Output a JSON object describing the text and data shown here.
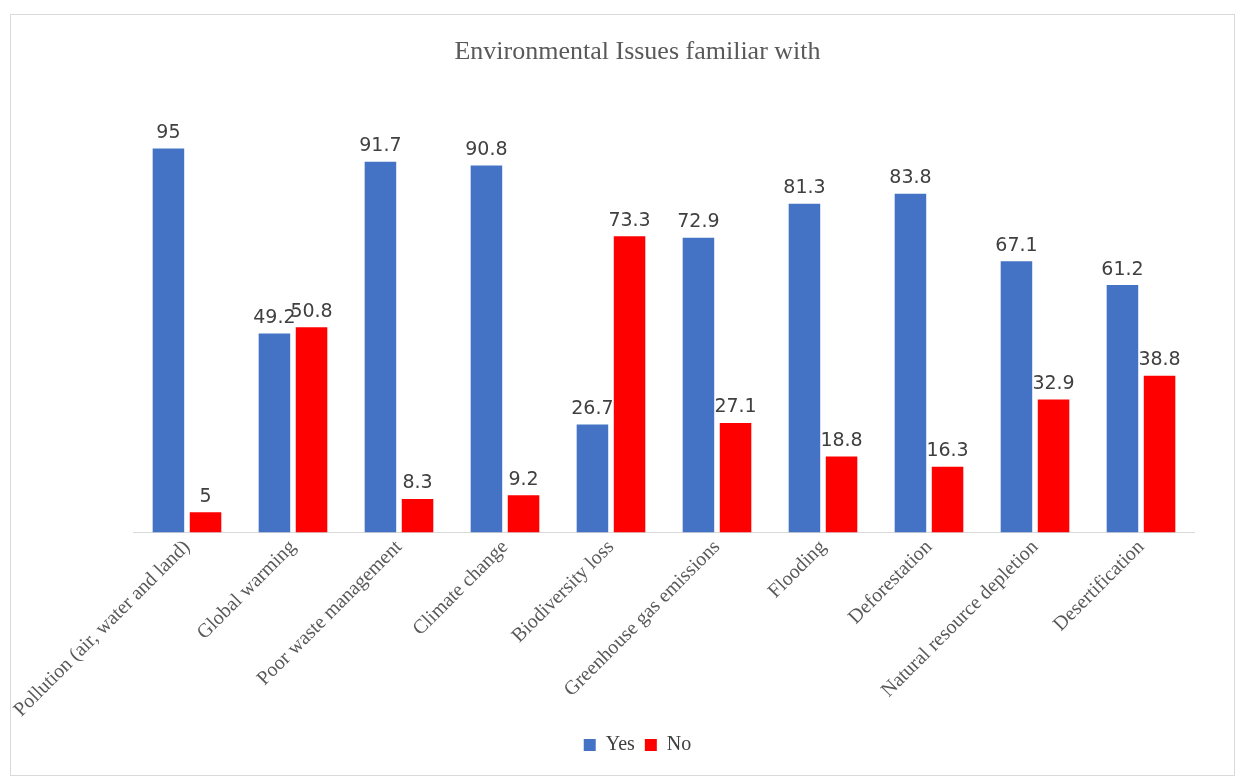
{
  "chart_data": {
    "type": "bar",
    "title": "Environmental Issues familiar with",
    "categories": [
      "Pollution (air, water and land)",
      "Global warming",
      "Poor waste management",
      "Climate change",
      "Biodiversity loss",
      "Greenhouse gas emissions",
      "Flooding",
      "Deforestation",
      "Natural resource depletion",
      "Desertification"
    ],
    "series": [
      {
        "name": "Yes",
        "color": "#4472c4",
        "values": [
          95,
          49.2,
          91.7,
          90.8,
          26.7,
          72.9,
          81.3,
          83.8,
          67.1,
          61.2
        ]
      },
      {
        "name": "No",
        "color": "#ff0000",
        "values": [
          5,
          50.8,
          8.3,
          9.2,
          73.3,
          27.1,
          18.8,
          16.3,
          32.9,
          38.8
        ]
      }
    ],
    "data_labels": true,
    "legend": "bottom",
    "tick_labels": "x",
    "grid": false
  }
}
